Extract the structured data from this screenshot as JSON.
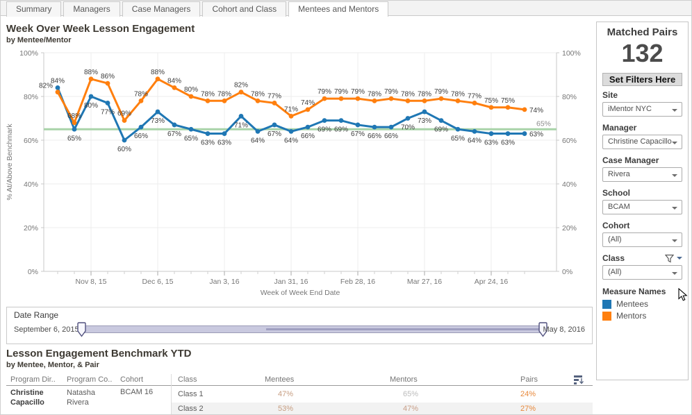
{
  "tabs": [
    {
      "label": "Summary"
    },
    {
      "label": "Managers"
    },
    {
      "label": "Case Managers"
    },
    {
      "label": "Cohort and Class"
    },
    {
      "label": "Mentees and Mentors"
    }
  ],
  "chart": {
    "title": "Week Over Week Lesson Engagement",
    "subtitle": "by Mentee/Mentor",
    "chart_data": {
      "type": "line",
      "xlabel": "Week of Week End Date",
      "ylabel": "% At/Above Benchmark",
      "ylim": [
        0,
        100
      ],
      "y_ticks": [
        "0%",
        "20%",
        "40%",
        "60%",
        "80%",
        "100%"
      ],
      "grid": true,
      "x": [
        "Oct 25, 15",
        "Nov 1, 15",
        "Nov 8, 15",
        "Nov 15, 15",
        "Nov 22, 15",
        "Nov 29, 15",
        "Dec 6, 15",
        "Dec 13, 15",
        "Dec 20, 15",
        "Dec 27, 15",
        "Jan 3, 16",
        "Jan 10, 16",
        "Jan 17, 16",
        "Jan 24, 16",
        "Jan 31, 16",
        "Feb 7, 16",
        "Feb 14, 16",
        "Feb 21, 16",
        "Feb 28, 16",
        "Mar 6, 16",
        "Mar 13, 16",
        "Mar 20, 16",
        "Mar 27, 16",
        "Apr 3, 16",
        "Apr 10, 16",
        "Apr 17, 16",
        "Apr 24, 16",
        "May 1, 16",
        "May 8, 16"
      ],
      "x_tick_indices": [
        2,
        6,
        10,
        14,
        18,
        22,
        26
      ],
      "x_tick_labels": [
        "Nov 8, 15",
        "Dec 6, 15",
        "Jan 3, 16",
        "Jan 31, 16",
        "Feb 28, 16",
        "Mar 27, 16",
        "Apr 24, 16"
      ],
      "series": [
        {
          "name": "Mentees",
          "color": "#1f77b4",
          "values": [
            84,
            65,
            80,
            77,
            60,
            66,
            73,
            67,
            65,
            63,
            63,
            71,
            64,
            67,
            64,
            66,
            69,
            69,
            67,
            66,
            66,
            70,
            73,
            69,
            65,
            64,
            63,
            63,
            63
          ]
        },
        {
          "name": "Mentors",
          "color": "#ff7f0e",
          "values": [
            82,
            68,
            88,
            86,
            69,
            78,
            88,
            84,
            80,
            78,
            78,
            82,
            78,
            77,
            71,
            74,
            79,
            79,
            79,
            78,
            79,
            78,
            78,
            79,
            78,
            77,
            75,
            75,
            74
          ]
        }
      ],
      "benchmark": {
        "value": 65,
        "label": "65%",
        "color": "#a9d3a9"
      },
      "legend_position": "sidebar"
    }
  },
  "date_range": {
    "title": "Date Range",
    "start_label": "September 6, 2015",
    "end_label": "May 8, 2016"
  },
  "benchmark_table": {
    "title": "Lesson Engagement Benchmark YTD",
    "subtitle": "by Mentee, Mentor, & Pair",
    "columns": [
      "Program Dir..",
      "Program Co..",
      "Cohort",
      "Class",
      "Mentees",
      "Mentors",
      "Pairs"
    ],
    "group": {
      "program_director": "Christine Capacillo",
      "program_coordinator": "Natasha Rivera",
      "cohort": "BCAM 16"
    },
    "rows": [
      {
        "class": "Class 1",
        "mentees": "47%",
        "mentors": "65%",
        "pairs": "24%",
        "mentees_color": "#c79e82",
        "mentors_color": "#bcbcbc",
        "pairs_color": "#e8883a"
      },
      {
        "class": "Class 2",
        "mentees": "53%",
        "mentors": "47%",
        "pairs": "27%",
        "mentees_color": "#c79e82",
        "mentors_color": "#c89f88",
        "pairs_color": "#e8883a"
      }
    ]
  },
  "sidebar": {
    "matched_pairs_label": "Matched Pairs",
    "matched_pairs_value": "132",
    "set_filters_label": "Set Filters Here",
    "filters": [
      {
        "label": "Site",
        "value": "iMentor NYC"
      },
      {
        "label": "Manager",
        "value": "Christine Capacillo"
      },
      {
        "label": "Case Manager",
        "value": "Rivera"
      },
      {
        "label": "School",
        "value": "BCAM"
      },
      {
        "label": "Cohort",
        "value": "(All)"
      },
      {
        "label": "Class",
        "value": "(All)",
        "has_filter_icon": true
      }
    ],
    "measure_names": {
      "label": "Measure Names",
      "items": [
        {
          "label": "Mentees",
          "color": "#1f77b4"
        },
        {
          "label": "Mentors",
          "color": "#ff7f0e"
        }
      ]
    }
  }
}
